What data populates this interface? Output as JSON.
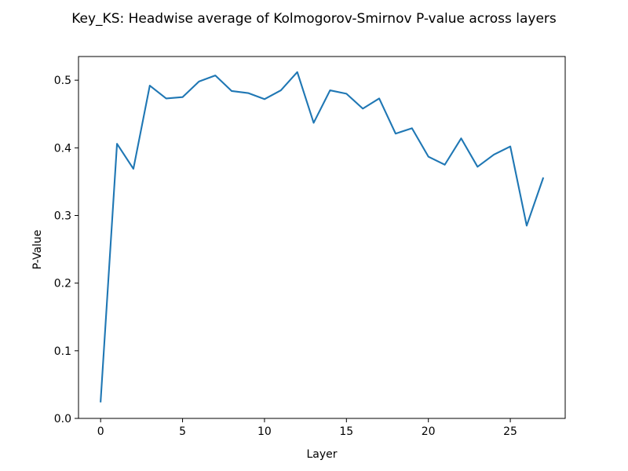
{
  "chart_data": {
    "type": "line",
    "title": "Key_KS: Headwise average of Kolmogorov-Smirnov P-value across layers",
    "xlabel": "Layer",
    "ylabel": "P-Value",
    "xlim": [
      -1.35,
      28.35
    ],
    "ylim": [
      0.0,
      0.535
    ],
    "xticks": [
      0,
      5,
      10,
      15,
      20,
      25
    ],
    "xtick_labels": [
      "0",
      "5",
      "10",
      "15",
      "20",
      "25"
    ],
    "yticks": [
      0.0,
      0.1,
      0.2,
      0.3,
      0.4,
      0.5
    ],
    "ytick_labels": [
      "0.0",
      "0.1",
      "0.2",
      "0.3",
      "0.4",
      "0.5"
    ],
    "grid": false,
    "legend": "none",
    "series": [
      {
        "color": "#1f77b4",
        "x": [
          0,
          1,
          2,
          3,
          4,
          5,
          6,
          7,
          8,
          9,
          10,
          11,
          12,
          13,
          14,
          15,
          16,
          17,
          18,
          19,
          20,
          21,
          22,
          23,
          24,
          25,
          26,
          27
        ],
        "values": [
          0.025,
          0.406,
          0.369,
          0.492,
          0.473,
          0.475,
          0.498,
          0.507,
          0.484,
          0.481,
          0.472,
          0.485,
          0.512,
          0.437,
          0.485,
          0.48,
          0.458,
          0.473,
          0.421,
          0.429,
          0.387,
          0.375,
          0.414,
          0.372,
          0.39,
          0.402,
          0.285,
          0.355
        ]
      }
    ]
  }
}
